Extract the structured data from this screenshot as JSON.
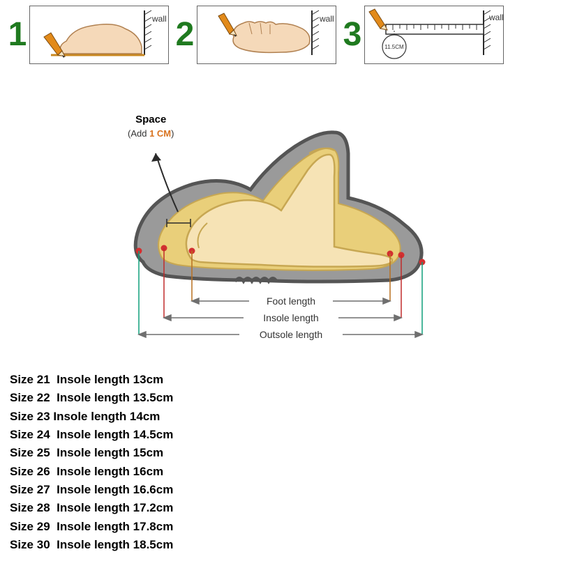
{
  "steps": {
    "wall_label": "wall",
    "items": [
      {
        "num": "1"
      },
      {
        "num": "2"
      },
      {
        "num": "3",
        "ruler_text": "11.5CM"
      }
    ],
    "colors": {
      "number": "#1f7a1f",
      "border": "#666666",
      "foot_fill": "#f5d9b9",
      "foot_outline": "#b08050",
      "pencil_body": "#e28a1a",
      "pencil_tip": "#2a2a2a",
      "floor_line": "#c98820",
      "wall_line": "#2a2a2a"
    }
  },
  "diagram": {
    "space_title": "Space",
    "space_sub_prefix": "(Add ",
    "space_sub_value": "1 CM",
    "space_sub_suffix": ")",
    "labels": {
      "foot": "Foot length",
      "insole": "Insole length",
      "outsole": "Outsole length"
    },
    "colors": {
      "foot_fill": "#f6e3b5",
      "foot_outline": "#c7a752",
      "shoe_fill": "#9a9a9a",
      "shoe_outline": "#555555",
      "insole_fill": "#e9cf7a",
      "dot": "#d23030",
      "arrow": "#6f6f6f",
      "foot_line": "#b86f1f",
      "insole_line": "#c02a2a",
      "outsole_line": "#0f9f7a",
      "text": "#333333",
      "space_highlight": "#d9731f"
    },
    "measure_x": {
      "foot": [
        148,
        432
      ],
      "insole": [
        108,
        448
      ],
      "outsole": [
        72,
        478
      ]
    },
    "measure_y": {
      "foot": 308,
      "insole": 332,
      "outsole": 356
    }
  },
  "sizes": [
    {
      "size": "21",
      "len": "13cm"
    },
    {
      "size": "22",
      "len": "13.5cm"
    },
    {
      "size": "23",
      "len": "14cm",
      "tight": true
    },
    {
      "size": "24",
      "len": "14.5cm"
    },
    {
      "size": "25",
      "len": "15cm"
    },
    {
      "size": "26",
      "len": "16cm"
    },
    {
      "size": "27",
      "len": "16.6cm"
    },
    {
      "size": "28",
      "len": "17.2cm"
    },
    {
      "size": "29",
      "len": "17.8cm"
    },
    {
      "size": "30",
      "len": "18.5cm"
    }
  ],
  "size_row_template": "Size {S}  Insole length {L}",
  "size_row_template_tight": "Size {S} Insole length {L}",
  "typography": {
    "size_list_fontsize": 17,
    "size_list_weight": 700
  }
}
